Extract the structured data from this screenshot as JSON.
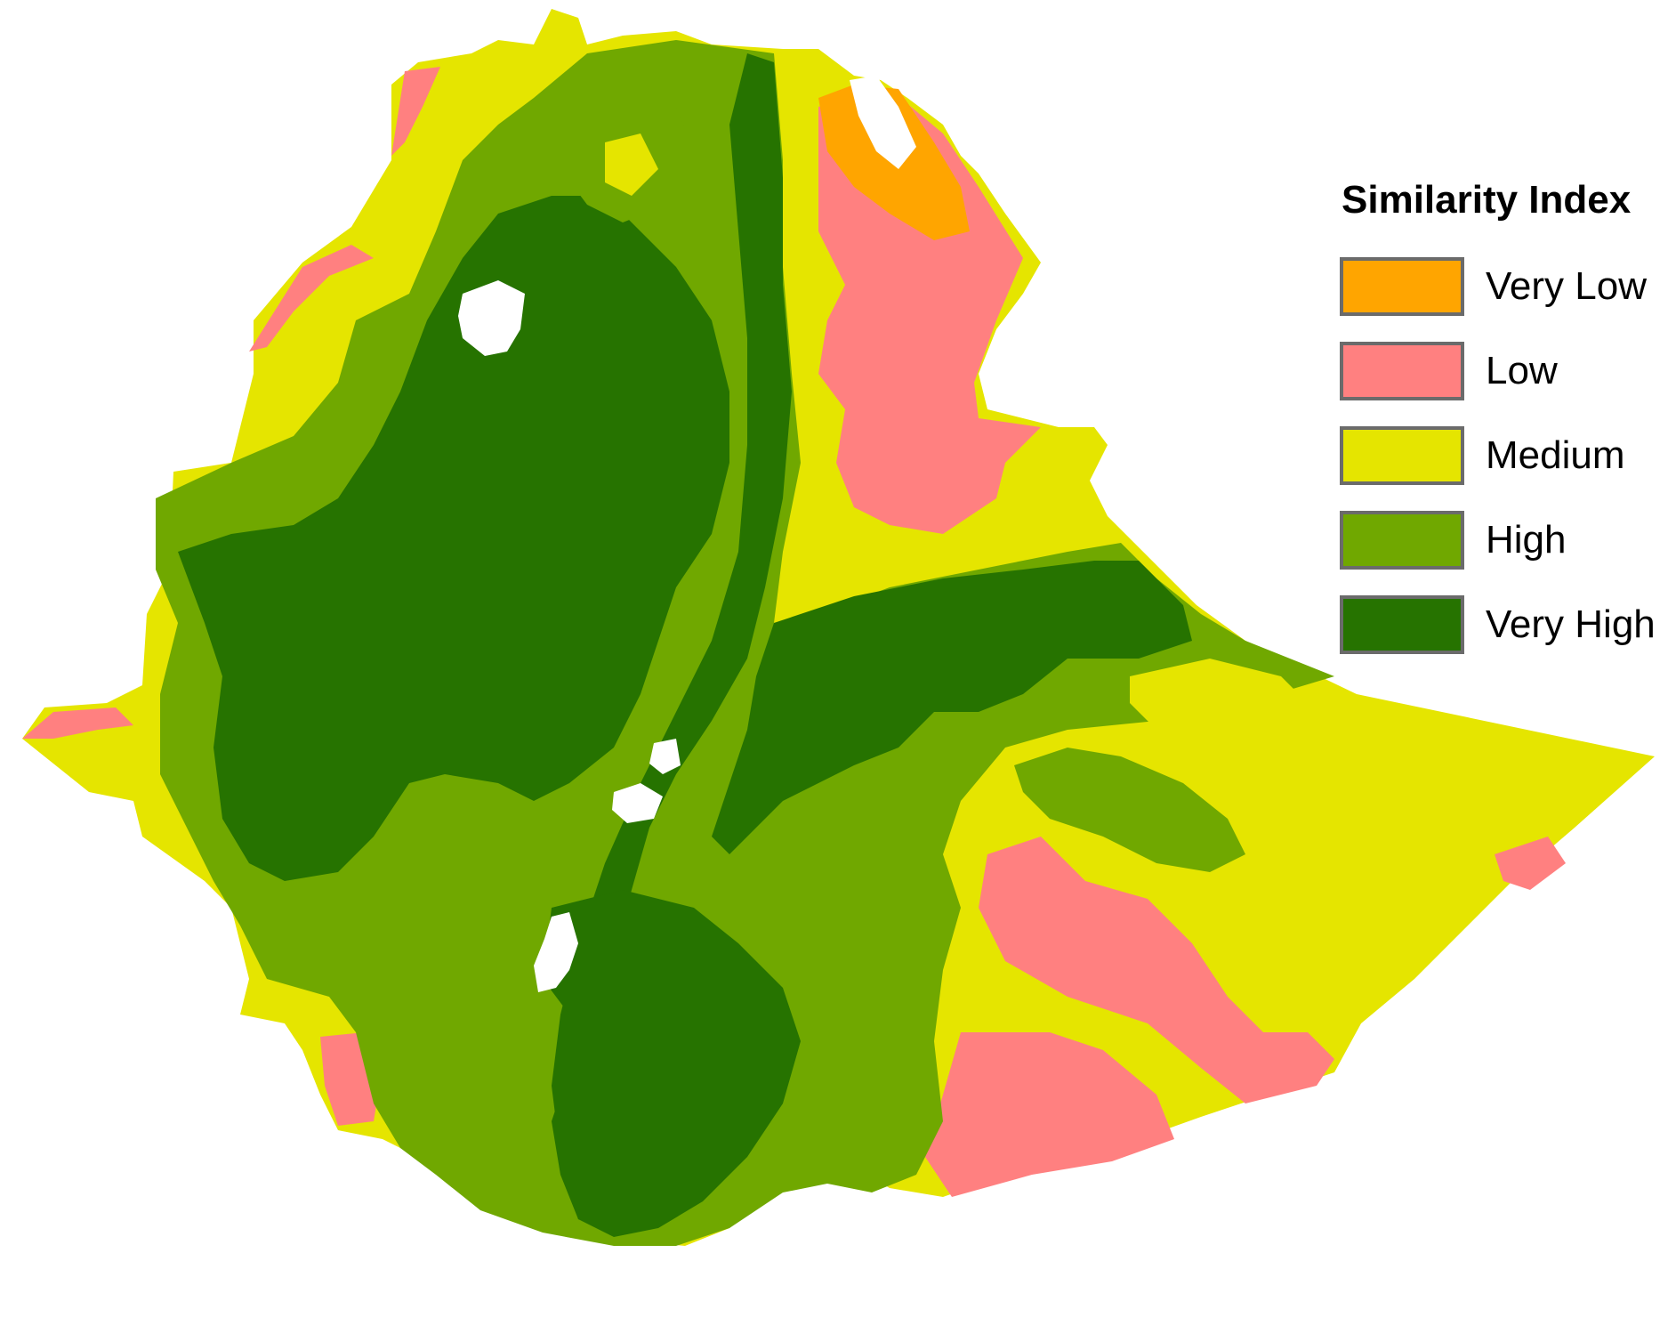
{
  "legend": {
    "title": "Similarity Index",
    "classes": [
      {
        "label": "Very Low",
        "color": "#FFA500"
      },
      {
        "label": "Low",
        "color": "#FF8080"
      },
      {
        "label": "Medium",
        "color": "#E5E500"
      },
      {
        "label": "High",
        "color": "#70A800"
      },
      {
        "label": "Very High",
        "color": "#267300"
      }
    ]
  },
  "no_data_color": "#FFFFFF"
}
